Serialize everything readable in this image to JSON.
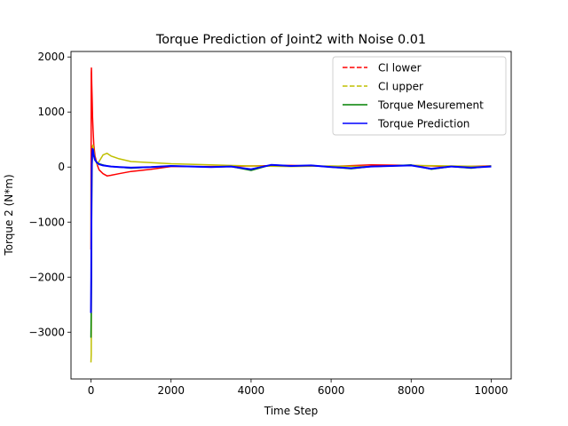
{
  "chart_data": {
    "type": "line",
    "title": "Torque Prediction of Joint2 with Noise 0.01",
    "xlabel": "Time Step",
    "ylabel": "Torque 2 (N*m)",
    "xlim": [
      -500,
      10500
    ],
    "ylim": [
      -3850,
      2100
    ],
    "xticks": [
      0,
      2000,
      4000,
      6000,
      8000,
      10000
    ],
    "xtick_labels": [
      "0",
      "2000",
      "4000",
      "6000",
      "8000",
      "10000"
    ],
    "yticks": [
      -3000,
      -2000,
      -1000,
      0,
      1000,
      2000
    ],
    "ytick_labels": [
      "−3000",
      "−2000",
      "−1000",
      "0",
      "1000",
      "2000"
    ],
    "grid": false,
    "legend_position": "top-right",
    "series": [
      {
        "name": "CI lower",
        "color": "#ff0000",
        "style": "dashed",
        "x": [
          0,
          5,
          10,
          20,
          30,
          40,
          50,
          70,
          100,
          150,
          200,
          300,
          400,
          500,
          700,
          1000,
          1500,
          2000,
          3000,
          4000,
          5000,
          6000,
          7000,
          8000,
          9000,
          10000
        ],
        "y": [
          -1500,
          1700,
          1800,
          1500,
          1200,
          900,
          700,
          400,
          200,
          50,
          -50,
          -120,
          -160,
          -150,
          -120,
          -80,
          -40,
          10,
          10,
          20,
          30,
          10,
          40,
          30,
          10,
          20
        ]
      },
      {
        "name": "CI upper",
        "color": "#bfbf00",
        "style": "dashed",
        "x": [
          0,
          5,
          10,
          20,
          30,
          40,
          50,
          70,
          100,
          150,
          200,
          300,
          400,
          500,
          700,
          1000,
          1500,
          2000,
          3000,
          4000,
          5000,
          6000,
          7000,
          8000,
          9000,
          10000
        ],
        "y": [
          -3550,
          -3400,
          -2000,
          -500,
          200,
          380,
          400,
          300,
          150,
          50,
          100,
          220,
          250,
          200,
          150,
          100,
          80,
          60,
          40,
          20,
          10,
          20,
          10,
          30,
          20,
          10
        ]
      },
      {
        "name": "Torque Mesurement",
        "color": "#008000",
        "style": "solid",
        "x": [
          0,
          5,
          10,
          20,
          30,
          40,
          50,
          70,
          100,
          150,
          200,
          300,
          400,
          500,
          700,
          1000,
          1500,
          2000,
          2500,
          3000,
          3500,
          4000,
          4500,
          5000,
          5500,
          6000,
          6500,
          7000,
          7500,
          8000,
          8500,
          9000,
          9500,
          10000
        ],
        "y": [
          -3100,
          -2600,
          -1500,
          -200,
          150,
          300,
          300,
          200,
          120,
          80,
          60,
          40,
          20,
          10,
          0,
          -20,
          0,
          20,
          10,
          0,
          10,
          -60,
          40,
          20,
          30,
          0,
          -30,
          10,
          20,
          40,
          -40,
          10,
          -20,
          20
        ]
      },
      {
        "name": "Torque Prediction",
        "color": "#0000ff",
        "style": "solid",
        "x": [
          0,
          5,
          10,
          20,
          30,
          40,
          50,
          70,
          100,
          150,
          200,
          300,
          400,
          500,
          700,
          1000,
          1500,
          2000,
          2500,
          3000,
          3500,
          4000,
          4500,
          5000,
          5500,
          6000,
          6500,
          7000,
          7500,
          8000,
          8500,
          9000,
          9500,
          10000
        ],
        "y": [
          -2650,
          -2000,
          -1000,
          0,
          250,
          330,
          320,
          220,
          130,
          80,
          50,
          30,
          20,
          10,
          0,
          -10,
          0,
          20,
          10,
          0,
          10,
          -40,
          40,
          20,
          30,
          0,
          -20,
          10,
          20,
          30,
          -30,
          10,
          -10,
          10
        ]
      }
    ]
  }
}
